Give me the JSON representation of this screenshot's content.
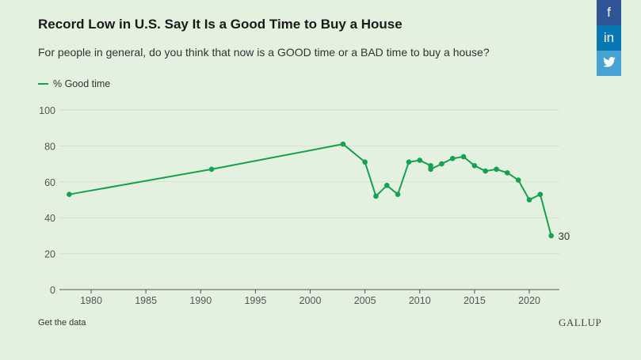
{
  "title": "Record Low in U.S. Say It Is a Good Time to Buy a House",
  "subtitle": "For people in general, do you think that now is a GOOD time or a BAD time to buy a house?",
  "footer": {
    "get_data": "Get the data",
    "logo": "GALLUP"
  },
  "social": [
    {
      "icon": "facebook-icon",
      "label": "f",
      "color": "#2f5597"
    },
    {
      "icon": "linkedin-icon",
      "label": "in",
      "color": "#0a77b5"
    },
    {
      "icon": "twitter-icon",
      "label": "",
      "color": "#47a3d4"
    }
  ],
  "chart_data": {
    "type": "line",
    "title": "Record Low in U.S. Say It Is a Good Time to Buy a House",
    "legend": "top-left",
    "color": "#14a150",
    "series": [
      {
        "name": "% Good time",
        "x": [
          1978,
          1991,
          2003,
          2005,
          2006,
          2007,
          2008,
          2009,
          2010,
          2011,
          2011,
          2012,
          2013,
          2014,
          2015,
          2016,
          2017,
          2018,
          2019,
          2020,
          2021,
          2022
        ],
        "y": [
          53,
          67,
          81,
          71,
          52,
          58,
          53,
          71,
          72,
          69,
          67,
          70,
          73,
          74,
          69,
          66,
          67,
          65,
          61,
          50,
          53,
          30
        ]
      }
    ],
    "end_label": "30",
    "xlim": [
      1975,
      2023
    ],
    "ylim": [
      0,
      100
    ],
    "x_ticks": [
      "1980",
      "1985",
      "1990",
      "1995",
      "2000",
      "2005",
      "2010",
      "2015",
      "2020"
    ],
    "y_ticks": [
      "0",
      "20",
      "40",
      "60",
      "80",
      "100"
    ],
    "grid": true
  }
}
